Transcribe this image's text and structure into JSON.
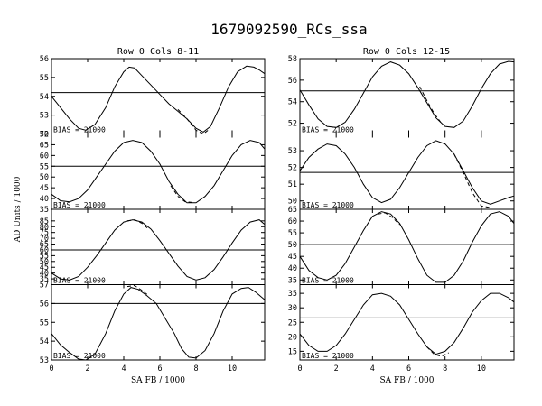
{
  "page": {
    "title": "1679092590_RCs_ssa"
  },
  "chart_data": [
    {
      "type": "line",
      "subtitle": "Row  0  Cols  8-11",
      "xlabel": "SA FB / 1000",
      "ylabel": "AD Units / 1000",
      "xlim": [
        0,
        11.8
      ],
      "xticks": [
        0,
        2,
        4,
        6,
        8,
        10
      ],
      "panels": [
        {
          "ylim": [
            52,
            56
          ],
          "yticks": [
            52,
            53,
            54,
            55,
            56
          ],
          "hline": 54.2,
          "bias_label": "BIAS = 21000",
          "series": [
            {
              "style": "solid",
              "x": [
                0,
                0.5,
                1,
                1.5,
                1.9,
                2.4,
                3,
                3.5,
                4,
                4.3,
                4.6,
                5,
                5.5,
                6,
                6.5,
                7,
                7.5,
                8,
                8.4,
                8.8,
                9.3,
                9.8,
                10.3,
                10.8,
                11.2,
                11.5,
                11.8
              ],
              "y": [
                54.0,
                53.4,
                52.8,
                52.3,
                52.2,
                52.5,
                53.4,
                54.5,
                55.3,
                55.55,
                55.5,
                55.1,
                54.6,
                54.1,
                53.6,
                53.2,
                52.8,
                52.3,
                52.1,
                52.4,
                53.4,
                54.5,
                55.3,
                55.6,
                55.55,
                55.4,
                55.2
              ]
            },
            {
              "style": "dashed",
              "x": [
                7,
                7.5,
                8,
                8.4,
                8.8
              ],
              "y": [
                53.3,
                52.8,
                52.2,
                52.0,
                52.3
              ]
            }
          ]
        },
        {
          "ylim": [
            35,
            70
          ],
          "yticks": [
            35,
            40,
            45,
            50,
            55,
            60,
            65,
            70
          ],
          "hline": 55,
          "bias_label": "BIAS = 21000",
          "series": [
            {
              "style": "solid",
              "x": [
                0,
                0.5,
                1,
                1.5,
                2,
                2.5,
                3,
                3.5,
                4,
                4.5,
                5,
                5.5,
                6,
                6.5,
                7,
                7.5,
                8,
                8.5,
                9,
                9.5,
                10,
                10.5,
                11,
                11.5,
                11.8
              ],
              "y": [
                42,
                39,
                38.5,
                40,
                44,
                50,
                56,
                62,
                66,
                67,
                66,
                62,
                56,
                48,
                42,
                38,
                38,
                41,
                46,
                53,
                60,
                65,
                67,
                66,
                63
              ]
            },
            {
              "style": "dashed",
              "x": [
                6.6,
                7,
                7.4,
                7.8
              ],
              "y": [
                46,
                41,
                38.5,
                38.2
              ]
            }
          ]
        },
        {
          "ylim": [
            30,
            95
          ],
          "yticks": [
            35,
            40,
            45,
            50,
            55,
            60,
            65,
            70,
            75,
            80,
            85
          ],
          "hline": 60,
          "bias_label": "BIAS = 21000",
          "series": [
            {
              "style": "solid",
              "x": [
                0,
                0.5,
                1,
                1.5,
                2,
                2.5,
                3,
                3.5,
                4,
                4.5,
                5,
                5.5,
                6,
                6.5,
                7,
                7.5,
                8,
                8.5,
                9,
                9.5,
                10,
                10.5,
                11,
                11.5,
                11.8
              ],
              "y": [
                40,
                35,
                34,
                37,
                45,
                55,
                66,
                77,
                84,
                86,
                84,
                78,
                68,
                57,
                46,
                37,
                34,
                36,
                43,
                54,
                66,
                77,
                84,
                86,
                82
              ]
            },
            {
              "style": "dashed",
              "x": [
                4.2,
                4.6,
                5,
                5.3
              ],
              "y": [
                85,
                86,
                83,
                79
              ]
            }
          ]
        },
        {
          "ylim": [
            53,
            57
          ],
          "yticks": [
            53,
            54,
            55,
            56,
            57
          ],
          "hline": 56,
          "bias_label": "BIAS = 21000",
          "series": [
            {
              "style": "solid",
              "x": [
                0,
                0.5,
                1,
                1.5,
                1.9,
                2.4,
                3,
                3.5,
                4,
                4.4,
                4.8,
                5.3,
                5.8,
                6.3,
                6.8,
                7.2,
                7.6,
                8,
                8.5,
                9,
                9.5,
                10,
                10.5,
                10.9,
                11.3,
                11.8
              ],
              "y": [
                54.4,
                53.8,
                53.4,
                53.05,
                53.0,
                53.3,
                54.4,
                55.6,
                56.5,
                56.85,
                56.75,
                56.4,
                56.0,
                55.2,
                54.4,
                53.6,
                53.15,
                53.1,
                53.5,
                54.4,
                55.6,
                56.5,
                56.8,
                56.85,
                56.6,
                56.2
              ]
            },
            {
              "style": "dashed",
              "x": [
                4.2,
                4.6,
                5,
                5.4
              ],
              "y": [
                56.9,
                56.95,
                56.7,
                56.4
              ]
            }
          ]
        }
      ]
    },
    {
      "type": "line",
      "subtitle": "Row  0  Cols  12-15",
      "xlabel": "SA FB / 1000",
      "ylabel": "",
      "xlim": [
        0,
        11.8
      ],
      "xticks": [
        0,
        2,
        4,
        6,
        8,
        10
      ],
      "panels": [
        {
          "ylim": [
            51,
            58
          ],
          "yticks": [
            52,
            54,
            56,
            58
          ],
          "hline": 55,
          "bias_label": "BIAS = 21000",
          "series": [
            {
              "style": "solid",
              "x": [
                0,
                0.5,
                1,
                1.5,
                2,
                2.5,
                3,
                3.5,
                4,
                4.5,
                5,
                5.5,
                6,
                6.5,
                7,
                7.5,
                8,
                8.5,
                9,
                9.5,
                10,
                10.5,
                11,
                11.5,
                11.8
              ],
              "y": [
                55.1,
                53.7,
                52.4,
                51.7,
                51.6,
                52.1,
                53.3,
                54.8,
                56.3,
                57.3,
                57.7,
                57.4,
                56.6,
                55.3,
                53.9,
                52.5,
                51.7,
                51.6,
                52.2,
                53.6,
                55.2,
                56.6,
                57.5,
                57.75,
                57.7
              ]
            },
            {
              "style": "dashed",
              "x": [
                6.6,
                7,
                7.4,
                7.8
              ],
              "y": [
                55.4,
                54.1,
                52.9,
                52.0
              ]
            }
          ]
        },
        {
          "ylim": [
            49.5,
            54
          ],
          "yticks": [
            50,
            51,
            52,
            53
          ],
          "hline": 51.7,
          "bias_label": "BIAS = 21000",
          "series": [
            {
              "style": "solid",
              "x": [
                0,
                0.5,
                1,
                1.5,
                2,
                2.5,
                3,
                3.5,
                4,
                4.5,
                5,
                5.5,
                6,
                6.5,
                7,
                7.5,
                8,
                8.5,
                9,
                9.5,
                10,
                10.5,
                11,
                11.5,
                11.8
              ],
              "y": [
                51.8,
                52.6,
                53.1,
                53.4,
                53.3,
                52.8,
                52.0,
                51.0,
                50.2,
                49.9,
                50.1,
                50.8,
                51.7,
                52.6,
                53.3,
                53.6,
                53.4,
                52.8,
                51.8,
                50.8,
                50.0,
                49.8,
                50.0,
                50.2,
                50.3
              ]
            },
            {
              "style": "dashed",
              "x": [
                8.5,
                9,
                9.5,
                10,
                10.5
              ],
              "y": [
                52.8,
                51.7,
                50.5,
                49.7,
                49.6
              ]
            }
          ]
        },
        {
          "ylim": [
            33,
            65
          ],
          "yticks": [
            35,
            40,
            45,
            50,
            55,
            60,
            65
          ],
          "hline": 50,
          "bias_label": "BIAS = 21000",
          "series": [
            {
              "style": "solid",
              "x": [
                0,
                0.5,
                1,
                1.5,
                2,
                2.5,
                3,
                3.5,
                4,
                4.5,
                5,
                5.5,
                6,
                6.5,
                7,
                7.5,
                8,
                8.5,
                9,
                9.5,
                10,
                10.5,
                11,
                11.5,
                11.8
              ],
              "y": [
                45,
                39,
                36,
                35,
                37,
                42,
                49,
                56,
                62,
                64,
                63,
                59,
                52,
                44,
                37,
                34,
                34,
                37,
                43,
                51,
                58,
                63,
                64,
                62,
                59
              ]
            },
            {
              "style": "dashed",
              "x": [
                4.3,
                4.7,
                5.1,
                5.5
              ],
              "y": [
                63,
                63.5,
                61.5,
                58.5
              ]
            }
          ]
        },
        {
          "ylim": [
            12,
            38
          ],
          "yticks": [
            15,
            20,
            25,
            30,
            35
          ],
          "hline": 26.5,
          "bias_label": "BIAS = 21000",
          "series": [
            {
              "style": "solid",
              "x": [
                0,
                0.5,
                1,
                1.5,
                2,
                2.5,
                3,
                3.5,
                4,
                4.5,
                5,
                5.5,
                6,
                6.5,
                7,
                7.5,
                8,
                8.5,
                9,
                9.5,
                10,
                10.5,
                11,
                11.5,
                11.8
              ],
              "y": [
                21,
                17,
                15,
                15,
                17,
                21,
                26,
                31,
                34.5,
                35,
                34,
                31,
                26,
                21,
                16.5,
                14,
                15,
                18,
                23,
                28.5,
                32.5,
                35,
                35,
                33.5,
                32
              ]
            },
            {
              "style": "dashed",
              "x": [
                7,
                7.4,
                7.8,
                8.2
              ],
              "y": [
                16.5,
                14,
                13.2,
                14.5
              ]
            }
          ]
        }
      ]
    }
  ]
}
